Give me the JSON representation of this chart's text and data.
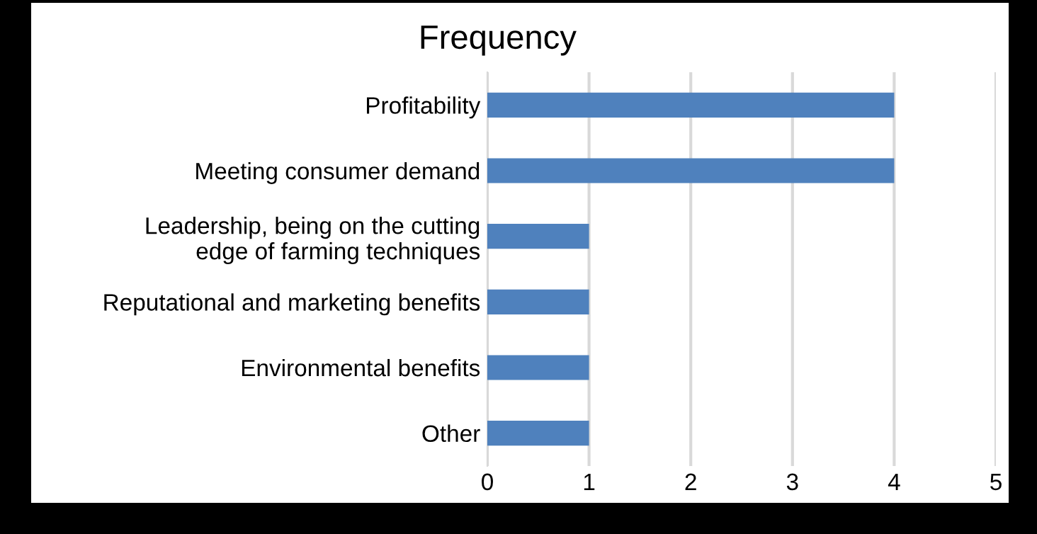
{
  "chart_data": {
    "type": "bar",
    "orientation": "horizontal",
    "title": "Frequency",
    "categories": [
      "Profitability",
      "Meeting consumer demand",
      "Leadership, being on the cutting\nedge of farming techniques",
      "Reputational and marketing benefits",
      "Environmental benefits",
      "Other"
    ],
    "values": [
      4,
      4,
      1,
      1,
      1,
      1
    ],
    "color": "#4f81bd",
    "xlim": [
      0,
      5
    ],
    "xticks": [
      0,
      1,
      2,
      3,
      4,
      5
    ],
    "grid": "x"
  }
}
